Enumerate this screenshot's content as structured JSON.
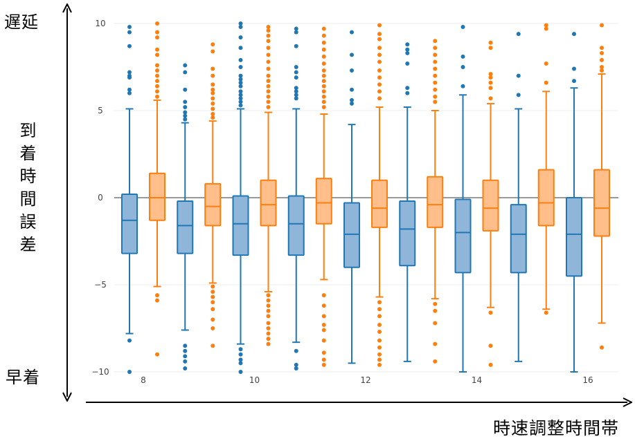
{
  "labels": {
    "late": "遅延",
    "early": "早着",
    "y_axis": "到着時間誤差",
    "x_axis": "時速調整時間帯"
  },
  "colors": {
    "series_a": "#1f77b4",
    "series_a_fill": "#8fb6d9",
    "series_b": "#ff7f0e",
    "series_b_fill": "#ffbe8a",
    "grid": "#eeeeee",
    "zero_line": "#999999"
  },
  "chart_data": {
    "type": "box",
    "y_range": [
      -10,
      10
    ],
    "y_ticks": [
      {
        "value": 10,
        "label": "10"
      },
      {
        "value": 5,
        "label": "5"
      },
      {
        "value": 0,
        "label": "0"
      },
      {
        "value": -5,
        "label": "−5"
      },
      {
        "value": -10,
        "label": "−10"
      }
    ],
    "x_ticks": [
      {
        "value": 8,
        "label": "8"
      },
      {
        "value": 10,
        "label": "10"
      },
      {
        "value": 12,
        "label": "12"
      },
      {
        "value": 14,
        "label": "14"
      },
      {
        "value": 16,
        "label": "16"
      }
    ],
    "grid": true,
    "series": [
      {
        "color_key": "series_a",
        "boxes": [
          {
            "x": 8,
            "q1": -3.2,
            "median": -1.3,
            "q3": 0.2,
            "low": -7.8,
            "high": 5.1,
            "outliers": [
              9.8,
              9.5,
              8.7,
              7.2,
              7.0,
              6.9,
              6.2,
              6.0,
              -8.2,
              -10.0
            ]
          },
          {
            "x": 9,
            "q1": -3.2,
            "median": -1.6,
            "q3": -0.2,
            "low": -7.6,
            "high": 4.3,
            "outliers": [
              7.6,
              7.2,
              6.2,
              5.5,
              5.2,
              4.9,
              4.7,
              4.5,
              -8.5,
              -8.8,
              -9.1,
              -9.4,
              -9.8
            ]
          },
          {
            "x": 10,
            "q1": -3.3,
            "median": -1.5,
            "q3": 0.1,
            "low": -8.4,
            "high": 5.1,
            "outliers": [
              10.0,
              9.8,
              9.2,
              8.6,
              7.9,
              7.5,
              7.0,
              6.8,
              6.6,
              6.4,
              6.1,
              5.9,
              5.7,
              5.5,
              5.3,
              -8.7,
              -9.0,
              -9.3,
              -9.5,
              -10.0
            ]
          },
          {
            "x": 11,
            "q1": -3.3,
            "median": -1.5,
            "q3": 0.1,
            "low": -8.3,
            "high": 5.1,
            "outliers": [
              9.7,
              9.5,
              8.7,
              7.5,
              7.2,
              6.9,
              6.3,
              6.1,
              5.9,
              5.7,
              -8.8,
              -9.6,
              -9.8
            ]
          },
          {
            "x": 12,
            "q1": -4.0,
            "median": -2.1,
            "q3": -0.3,
            "low": -9.5,
            "high": 4.2,
            "outliers": [
              9.5,
              8.2,
              7.3,
              6.2,
              5.6,
              5.4
            ]
          },
          {
            "x": 13,
            "q1": -3.9,
            "median": -1.8,
            "q3": -0.2,
            "low": -9.4,
            "high": 5.2,
            "outliers": [
              8.8,
              8.5,
              8.3,
              7.7,
              6.3,
              6.0
            ]
          },
          {
            "x": 14,
            "q1": -4.3,
            "median": -2.0,
            "q3": -0.1,
            "low": -10.0,
            "high": 5.9,
            "outliers": [
              9.8,
              8.1,
              7.5,
              6.4
            ]
          },
          {
            "x": 15,
            "q1": -4.3,
            "median": -2.1,
            "q3": -0.4,
            "low": -9.4,
            "high": 5.1,
            "outliers": [
              9.4,
              7.0,
              5.9
            ]
          },
          {
            "x": 16,
            "q1": -4.5,
            "median": -2.1,
            "q3": 0.0,
            "low": -10.0,
            "high": 6.3,
            "outliers": [
              9.4,
              7.4,
              6.7
            ]
          }
        ]
      },
      {
        "color_key": "series_b",
        "boxes": [
          {
            "x": 8,
            "q1": -1.3,
            "median": 0.0,
            "q3": 1.4,
            "low": -5.1,
            "high": 5.6,
            "outliers": [
              10.0,
              9.5,
              9.2,
              8.5,
              8.2,
              7.6,
              7.3,
              7.0,
              6.7,
              6.4,
              6.1,
              5.8,
              -5.6,
              -5.9,
              -9.0
            ]
          },
          {
            "x": 9,
            "q1": -1.6,
            "median": -0.5,
            "q3": 0.8,
            "low": -4.9,
            "high": 4.4,
            "outliers": [
              8.8,
              8.4,
              7.4,
              7.0,
              6.5,
              6.2,
              6.0,
              5.7,
              5.4,
              5.1,
              4.8,
              4.6,
              -5.1,
              -5.4,
              -5.7,
              -6.0,
              -6.4,
              -7.0,
              -7.5,
              -8.5
            ]
          },
          {
            "x": 10,
            "q1": -1.6,
            "median": -0.4,
            "q3": 1.0,
            "low": -5.4,
            "high": 4.9,
            "outliers": [
              9.8,
              9.6,
              9.3,
              9.0,
              8.6,
              8.2,
              7.8,
              7.4,
              7.0,
              6.7,
              6.4,
              6.1,
              5.8,
              5.5,
              5.2,
              -5.6,
              -5.9,
              -6.2,
              -6.5,
              -6.8,
              -7.2,
              -7.5,
              -7.8,
              -8.1,
              -8.4
            ]
          },
          {
            "x": 11,
            "q1": -1.5,
            "median": -0.3,
            "q3": 1.1,
            "low": -4.7,
            "high": 4.8,
            "outliers": [
              9.7,
              9.3,
              8.9,
              8.5,
              8.1,
              7.7,
              7.3,
              7.0,
              6.7,
              6.4,
              6.1,
              5.8,
              5.5,
              5.2,
              -5.6,
              -6.2,
              -6.8,
              -7.3,
              -7.6,
              -8.2,
              -8.9,
              -9.3,
              -9.6
            ]
          },
          {
            "x": 12,
            "q1": -1.7,
            "median": -0.6,
            "q3": 1.0,
            "low": -5.7,
            "high": 5.2,
            "outliers": [
              9.9,
              9.4,
              9.1,
              8.6,
              8.2,
              7.8,
              7.3,
              6.9,
              6.5,
              6.1,
              5.7,
              -6.0,
              -6.4,
              -6.8,
              -7.3,
              -7.7,
              -8.2,
              -8.6,
              -9.0,
              -9.3,
              -9.6
            ]
          },
          {
            "x": 13,
            "q1": -1.7,
            "median": -0.4,
            "q3": 1.2,
            "low": -5.8,
            "high": 5.0,
            "outliers": [
              9.0,
              8.6,
              8.2,
              7.8,
              7.4,
              7.0,
              6.6,
              6.2,
              5.8,
              5.5,
              -6.1,
              -6.5,
              -7.2,
              -8.4,
              -9.4
            ]
          },
          {
            "x": 14,
            "q1": -1.9,
            "median": -0.6,
            "q3": 1.0,
            "low": -6.3,
            "high": 5.4,
            "outliers": [
              8.9,
              8.6,
              7.1,
              6.9,
              6.6,
              6.3,
              5.7,
              -6.6,
              -8.5,
              -9.6
            ]
          },
          {
            "x": 15,
            "q1": -1.6,
            "median": -0.3,
            "q3": 1.6,
            "low": -6.4,
            "high": 6.1,
            "outliers": [
              9.9,
              9.7,
              7.7,
              6.6,
              -6.6
            ]
          },
          {
            "x": 16,
            "q1": -2.2,
            "median": -0.6,
            "q3": 1.6,
            "low": -7.2,
            "high": 7.1,
            "outliers": [
              9.9,
              8.6,
              8.3,
              7.9,
              7.5,
              7.3,
              -8.6
            ]
          }
        ]
      }
    ]
  }
}
